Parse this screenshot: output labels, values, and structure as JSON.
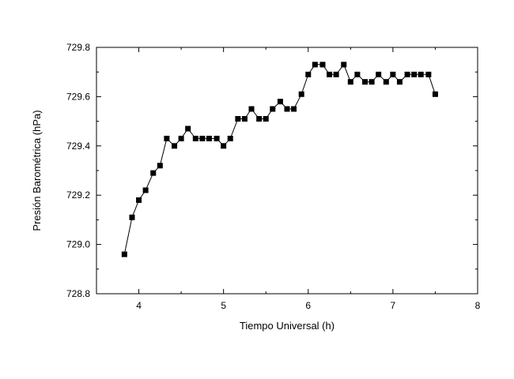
{
  "chart_data": {
    "type": "line",
    "title": "",
    "xlabel": "Tiempo Universal (h)",
    "ylabel": "Presión Barométrica (hPa)",
    "xlim": [
      3.5,
      8
    ],
    "ylim": [
      728.8,
      729.8
    ],
    "xticks": [
      "4",
      "5",
      "6",
      "7",
      "8"
    ],
    "yticks": [
      "728.8",
      "729.0",
      "729.2",
      "729.4",
      "729.6",
      "729.8"
    ],
    "grid": false,
    "marker": "square",
    "series": [
      {
        "x": [
          3.83,
          3.92,
          4.0,
          4.08,
          4.17,
          4.25,
          4.33,
          4.42,
          4.5,
          4.58,
          4.67,
          4.75,
          4.83,
          4.92,
          5.0,
          5.08,
          5.17,
          5.25,
          5.33,
          5.42,
          5.5,
          5.58,
          5.67,
          5.75,
          5.83,
          5.92,
          6.0,
          6.08,
          6.17,
          6.25,
          6.33,
          6.42,
          6.5,
          6.58,
          6.67,
          6.75,
          6.83,
          6.92,
          7.0,
          7.08,
          7.17,
          7.25,
          7.33,
          7.42,
          7.5
        ],
        "y": [
          728.96,
          729.11,
          729.18,
          729.22,
          729.29,
          729.32,
          729.43,
          729.4,
          729.43,
          729.47,
          729.43,
          729.43,
          729.43,
          729.43,
          729.4,
          729.43,
          729.51,
          729.51,
          729.55,
          729.51,
          729.51,
          729.55,
          729.58,
          729.55,
          729.55,
          729.61,
          729.69,
          729.73,
          729.73,
          729.69,
          729.69,
          729.73,
          729.66,
          729.69,
          729.66,
          729.66,
          729.69,
          729.66,
          729.69,
          729.66,
          729.69,
          729.69,
          729.69,
          729.69,
          729.61
        ],
        "color": "#000000"
      }
    ]
  }
}
